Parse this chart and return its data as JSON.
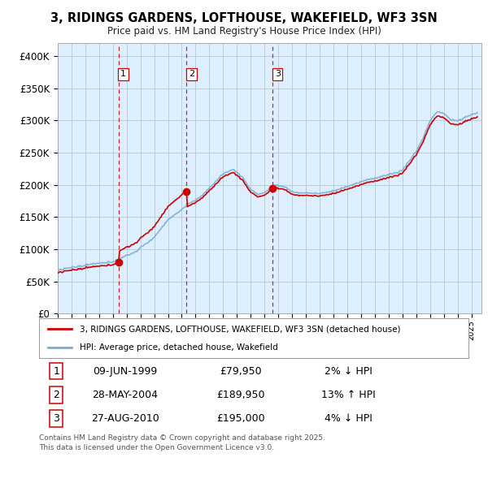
{
  "title": "3, RIDINGS GARDENS, LOFTHOUSE, WAKEFIELD, WF3 3SN",
  "subtitle": "Price paid vs. HM Land Registry's House Price Index (HPI)",
  "ylim": [
    0,
    420000
  ],
  "yticks": [
    0,
    50000,
    100000,
    150000,
    200000,
    250000,
    300000,
    350000,
    400000
  ],
  "ytick_labels": [
    "£0",
    "£50K",
    "£100K",
    "£150K",
    "£200K",
    "£250K",
    "£300K",
    "£350K",
    "£400K"
  ],
  "legend_line1": "3, RIDINGS GARDENS, LOFTHOUSE, WAKEFIELD, WF3 3SN (detached house)",
  "legend_line2": "HPI: Average price, detached house, Wakefield",
  "sale1_date": "09-JUN-1999",
  "sale1_price": "£79,950",
  "sale1_hpi": "2% ↓ HPI",
  "sale2_date": "28-MAY-2004",
  "sale2_price": "£189,950",
  "sale2_hpi": "13% ↑ HPI",
  "sale3_date": "27-AUG-2010",
  "sale3_price": "£195,000",
  "sale3_hpi": "4% ↓ HPI",
  "footer1": "Contains HM Land Registry data © Crown copyright and database right 2025.",
  "footer2": "This data is licensed under the Open Government Licence v3.0.",
  "hpi_color": "#7aadd4",
  "sale_color": "#cc0000",
  "dashed_color": "#cc0000",
  "bg_color": "#ddeeff",
  "grid_color": "#bbccdd"
}
